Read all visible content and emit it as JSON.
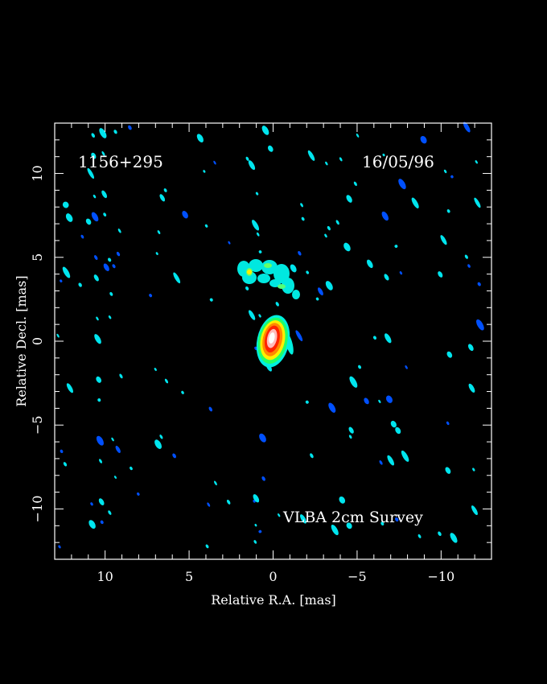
{
  "labels": {
    "source": "1156+295",
    "date": "16/05/96",
    "survey": "VLBA 2cm Survey",
    "xlabel": "Relative R.A. [mas]",
    "ylabel": "Relative Decl. [mas]"
  },
  "axes": {
    "xlim": [
      13,
      -13
    ],
    "ylim": [
      -13,
      13
    ],
    "xticks": [
      10,
      5,
      0,
      -5,
      -10
    ],
    "yticks": [
      10,
      5,
      0,
      -5,
      -10
    ],
    "tick_labels_x": [
      "10",
      "5",
      "0",
      "−5",
      "−10"
    ],
    "tick_labels_y": [
      "10",
      "5",
      "0",
      "−5",
      "−10"
    ]
  },
  "colors": {
    "background": "#000000",
    "frame": "#ffffff",
    "noise": "#00e5ee",
    "noise_dark": "#0050ff",
    "core_ramp": [
      "#00f0e0",
      "#22ff66",
      "#ffee00",
      "#ff8800",
      "#ff2200",
      "#ffbbbb",
      "#ffffff"
    ]
  }
}
